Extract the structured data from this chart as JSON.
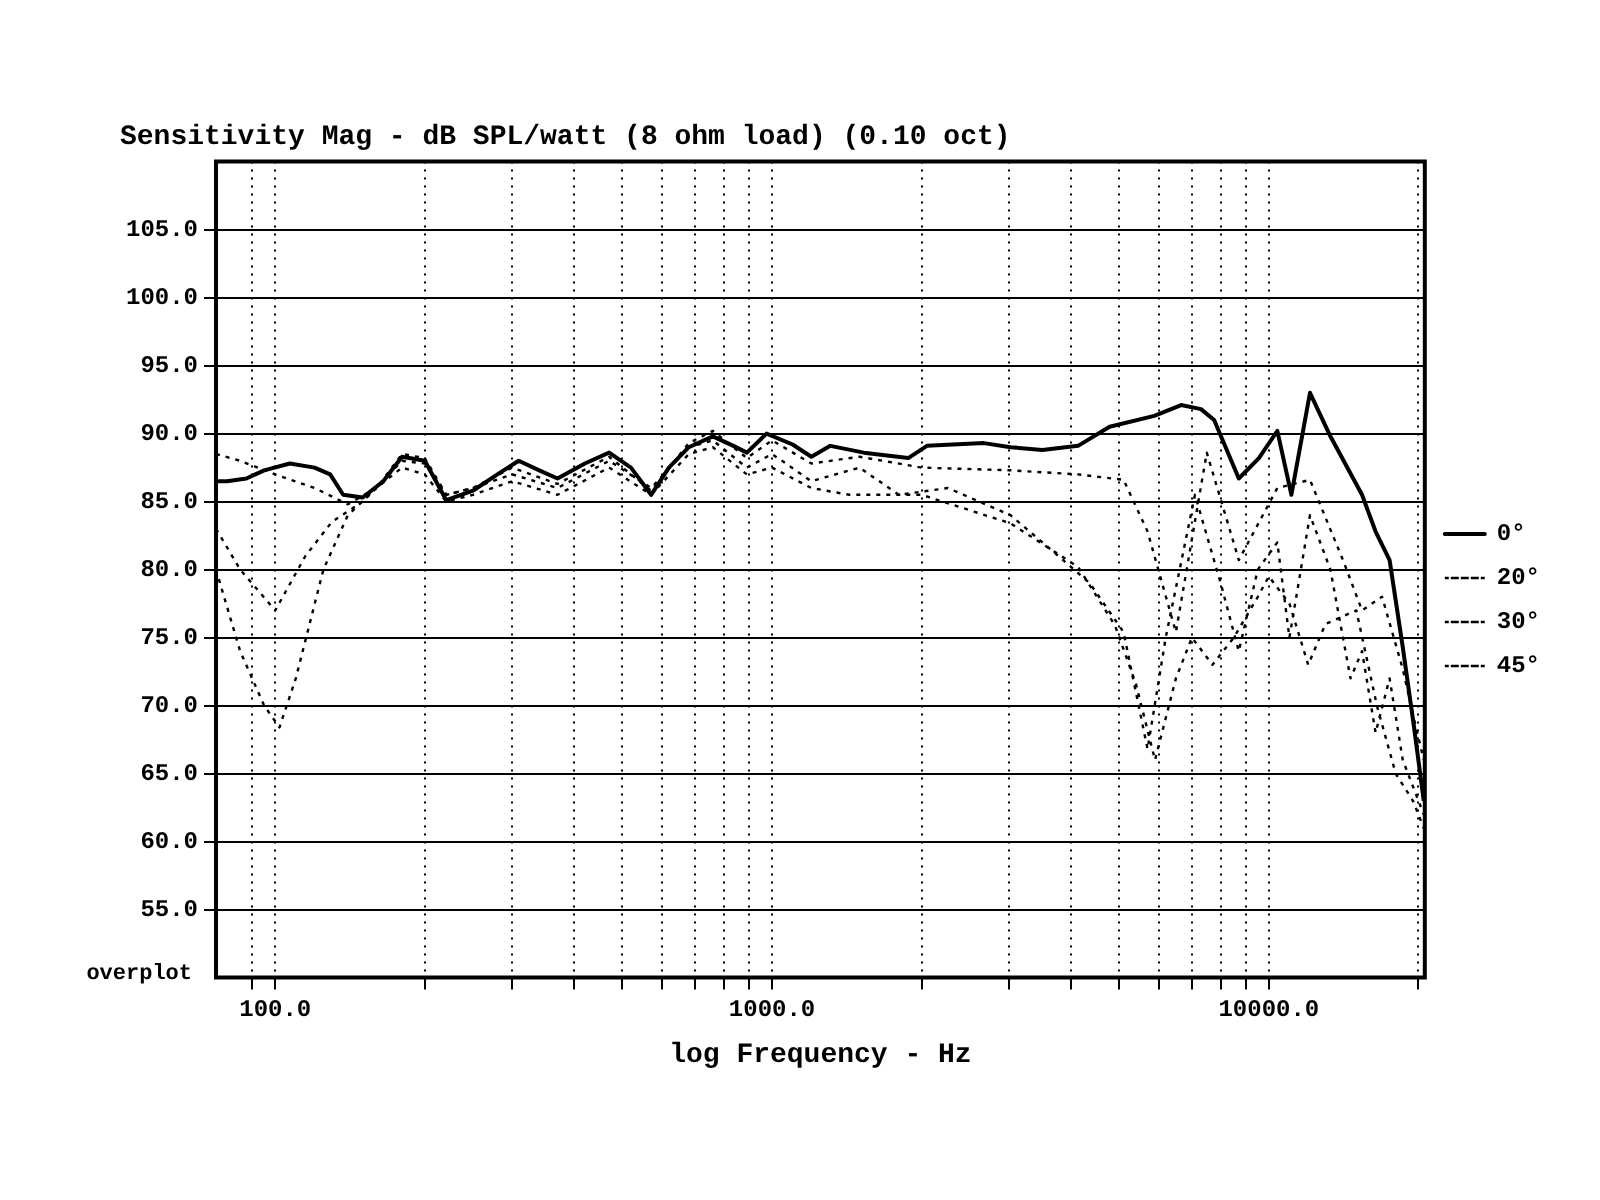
{
  "chart_data": {
    "type": "line",
    "title": "Sensitivity Mag - dB SPL/watt (8 ohm load) (0.10 oct)",
    "xlabel": "log Frequency - Hz",
    "annotations": [
      "overplot"
    ],
    "log": "x",
    "grid": true,
    "legend": "right",
    "marker": "none",
    "xlim": [
      76,
      20600
    ],
    "xticks": [
      {
        "value": 90,
        "label": null
      },
      {
        "value": 100,
        "label": "100.0"
      },
      {
        "value": 200,
        "label": null
      },
      {
        "value": 300,
        "label": null
      },
      {
        "value": 400,
        "label": null
      },
      {
        "value": 500,
        "label": null
      },
      {
        "value": 600,
        "label": null
      },
      {
        "value": 700,
        "label": null
      },
      {
        "value": 800,
        "label": null
      },
      {
        "value": 900,
        "label": null
      },
      {
        "value": 1000,
        "label": "1000.0"
      },
      {
        "value": 2000,
        "label": null
      },
      {
        "value": 3000,
        "label": null
      },
      {
        "value": 4000,
        "label": null
      },
      {
        "value": 5000,
        "label": null
      },
      {
        "value": 6000,
        "label": null
      },
      {
        "value": 7000,
        "label": null
      },
      {
        "value": 8000,
        "label": null
      },
      {
        "value": 9000,
        "label": null
      },
      {
        "value": 10000,
        "label": "10000.0"
      },
      {
        "value": 20000,
        "label": null
      }
    ],
    "ylim": [
      50,
      110
    ],
    "yticks": [
      {
        "value": 55,
        "label": "55.0"
      },
      {
        "value": 60,
        "label": "60.0"
      },
      {
        "value": 65,
        "label": "65.0"
      },
      {
        "value": 70,
        "label": "70.0"
      },
      {
        "value": 75,
        "label": "75.0"
      },
      {
        "value": 80,
        "label": "80.0"
      },
      {
        "value": 85,
        "label": "85.0"
      },
      {
        "value": 90,
        "label": "90.0"
      },
      {
        "value": 95,
        "label": "95.0"
      },
      {
        "value": 100,
        "label": "100.0"
      },
      {
        "value": 105,
        "label": "105.0"
      }
    ],
    "series": [
      {
        "name": "0°",
        "color": "#000000",
        "line_style": "solid",
        "x": [
          76,
          80,
          87.5,
          95,
          107,
          120,
          129,
          137,
          150,
          165,
          180,
          200,
          221,
          250,
          280,
          309,
          340,
          370,
          420,
          470,
          520,
          571,
          620,
          680,
          760,
          836,
          890,
          975,
          1100,
          1200,
          1310,
          1530,
          1880,
          2050,
          2670,
          3020,
          3500,
          4130,
          4780,
          5880,
          6660,
          7300,
          7760,
          8700,
          9550,
          10400,
          11100,
          12100,
          13300,
          15400,
          16400,
          17500,
          18600,
          19600,
          20500
        ],
        "values": [
          86.5,
          86.5,
          86.7,
          87.3,
          87.8,
          87.5,
          87,
          85.5,
          85.3,
          86.5,
          88.3,
          88,
          85.1,
          85.8,
          87,
          88,
          87.3,
          86.7,
          87.8,
          88.6,
          87.5,
          85.5,
          87.5,
          89,
          89.8,
          89.1,
          88.6,
          90,
          89.2,
          88.3,
          89.1,
          88.6,
          88.2,
          89.1,
          89.3,
          89,
          88.8,
          89.1,
          90.5,
          91.3,
          92.1,
          91.8,
          91,
          86.7,
          88.2,
          90.2,
          85.5,
          93,
          89.8,
          85.5,
          82.8,
          80.7,
          74.3,
          68.4,
          63
        ]
      },
      {
        "name": "20°",
        "color": "#000000",
        "line_style": "dotted",
        "x": [
          76,
          85,
          100,
          120,
          140,
          160,
          180,
          200,
          221,
          250,
          300,
          370,
          470,
          571,
          680,
          760,
          890,
          1000,
          1200,
          1500,
          2000,
          3020,
          4130,
          5100,
          5700,
          6500,
          7500,
          8700,
          10400,
          12100,
          14100,
          15400,
          16900,
          18600,
          19600,
          20500
        ],
        "values": [
          88.5,
          88,
          87,
          86,
          84.8,
          86,
          88.5,
          88.2,
          85.5,
          86,
          87.5,
          86.3,
          88.3,
          85.8,
          89.3,
          90.2,
          88.2,
          89.5,
          87.8,
          88.3,
          87.5,
          87.3,
          87,
          86.6,
          82.8,
          75.4,
          88.6,
          80.7,
          86,
          86.6,
          80.7,
          77,
          78,
          72.7,
          69,
          66
        ]
      },
      {
        "name": "30°",
        "color": "#000000",
        "line_style": "dotted",
        "x": [
          76,
          85,
          100,
          115,
          130,
          150,
          180,
          200,
          221,
          250,
          300,
          370,
          470,
          571,
          680,
          760,
          890,
          1000,
          1200,
          1500,
          1800,
          2260,
          3020,
          3770,
          4360,
          5100,
          5700,
          6200,
          7100,
          8000,
          8700,
          9500,
          10400,
          11000,
          12100,
          13300,
          14600,
          15400,
          16400,
          17500,
          18600,
          20500
        ],
        "values": [
          83,
          80,
          77,
          81,
          83.5,
          85,
          88,
          87.8,
          85.5,
          86,
          87,
          86,
          88,
          86,
          89,
          89.5,
          87.5,
          88.5,
          86.5,
          87.5,
          85.5,
          86,
          84,
          81,
          79,
          75.4,
          66.8,
          75,
          85.5,
          79,
          74,
          80,
          82,
          75,
          84,
          80,
          72,
          74,
          68,
          72,
          66,
          62
        ]
      },
      {
        "name": "45°",
        "color": "#000000",
        "line_style": "dotted",
        "x": [
          76,
          85,
          95,
          102,
          110,
          125,
          140,
          160,
          180,
          200,
          221,
          250,
          300,
          370,
          470,
          571,
          680,
          760,
          890,
          1000,
          1200,
          1430,
          2000,
          3020,
          4130,
          4900,
          5400,
          5900,
          6500,
          7000,
          7700,
          8500,
          9500,
          10000,
          11000,
          12000,
          13000,
          15000,
          16500,
          18000,
          19500,
          20500
        ],
        "values": [
          80,
          74,
          70,
          68.4,
          72,
          80,
          84,
          86,
          87.5,
          87,
          85,
          85.5,
          86.5,
          85.5,
          87.5,
          85.5,
          88.5,
          89,
          87,
          87.5,
          86,
          85.5,
          85.5,
          83.4,
          80.2,
          75.9,
          71.6,
          66,
          72,
          75,
          73,
          75,
          78,
          79.5,
          77.5,
          73,
          76,
          77,
          70,
          65,
          63,
          61
        ]
      }
    ]
  }
}
